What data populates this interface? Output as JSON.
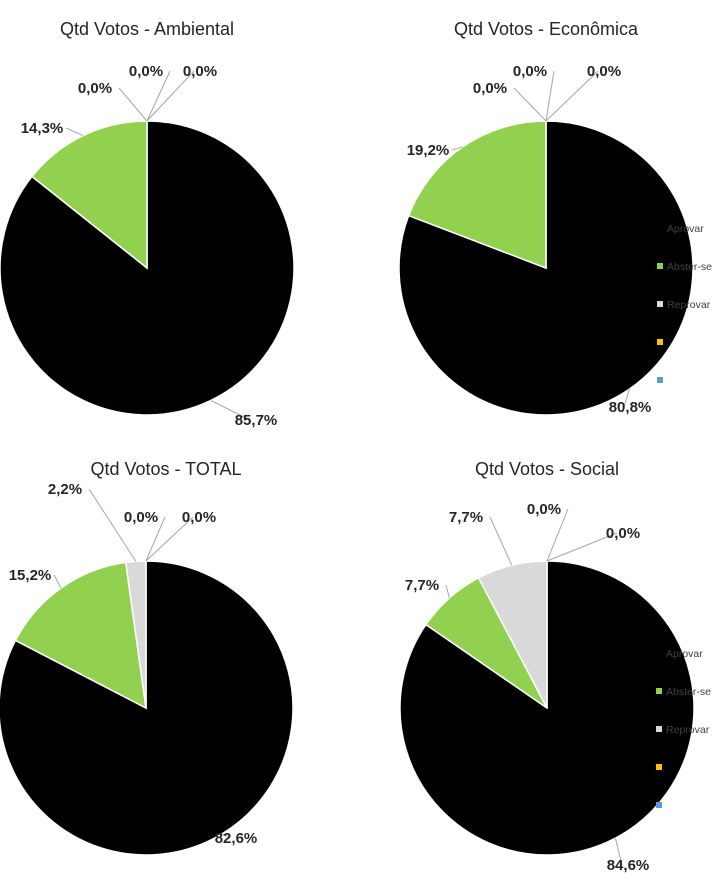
{
  "chart_data": [
    {
      "type": "pie",
      "title": "Qtd Votos - Ambiental",
      "categories": [
        "Aprovar",
        "Abster-se",
        "Reprovar",
        "",
        ""
      ],
      "values": [
        85.7,
        14.3,
        0.0,
        0.0,
        0.0
      ],
      "labels": [
        "85,7%",
        "14,3%",
        "0,0%",
        "0,0%",
        "0,0%"
      ],
      "legend": false
    },
    {
      "type": "pie",
      "title": "Qtd Votos - Econômica",
      "categories": [
        "Aprovar",
        "Abster-se",
        "Reprovar",
        "",
        ""
      ],
      "values": [
        80.8,
        19.2,
        0.0,
        0.0,
        0.0
      ],
      "labels": [
        "80,8%",
        "19,2%",
        "0,0%",
        "0,0%",
        "0,0%"
      ],
      "legend": "right"
    },
    {
      "type": "pie",
      "title": "Qtd Votos - TOTAL",
      "categories": [
        "Aprovar",
        "Abster-se",
        "Reprovar",
        "",
        ""
      ],
      "values": [
        82.6,
        15.2,
        2.2,
        0.0,
        0.0
      ],
      "labels": [
        "82,6%",
        "15,2%",
        "2,2%",
        "0,0%",
        "0,0%"
      ],
      "legend": false
    },
    {
      "type": "pie",
      "title": "Qtd Votos - Social",
      "categories": [
        "Aprovar",
        "Abster-se",
        "Reprovar",
        "",
        ""
      ],
      "values": [
        84.6,
        7.7,
        7.7,
        0.0,
        0.0
      ],
      "labels": [
        "84,6%",
        "7,7%",
        "7,7%",
        "0,0%",
        "0,0%"
      ],
      "legend": "right"
    }
  ],
  "colors": [
    "#000000",
    "#92d050",
    "#d9d9d9",
    "#ffc000",
    "#5b9bd5"
  ]
}
